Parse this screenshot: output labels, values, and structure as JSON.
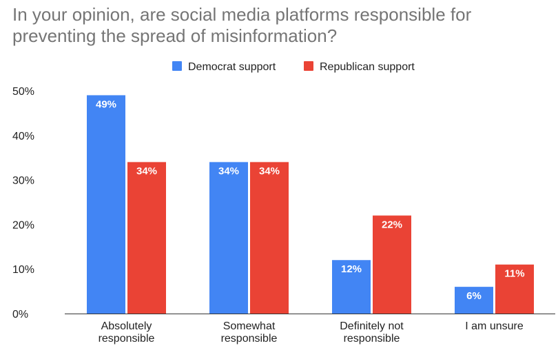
{
  "chart_data": {
    "type": "bar",
    "title_lines": [
      "In your opinion, are social media platforms responsible for",
      "preventing the spread of misinformation?"
    ],
    "categories": [
      [
        "Absolutely",
        "responsible"
      ],
      [
        "Somewhat",
        "responsible"
      ],
      [
        "Definitely not",
        "responsible"
      ],
      [
        "I am unsure"
      ]
    ],
    "series": [
      {
        "name": "Democrat support",
        "color": "#4285F4",
        "values": [
          49,
          34,
          12,
          6
        ],
        "labels": [
          "49%",
          "34%",
          "12%",
          "6%"
        ]
      },
      {
        "name": "Republican support",
        "color": "#EA4335",
        "values": [
          34,
          34,
          22,
          11
        ],
        "labels": [
          "34%",
          "34%",
          "22%",
          "11%"
        ]
      }
    ],
    "ylim": [
      0,
      50
    ],
    "yticks": [
      0,
      10,
      20,
      30,
      40,
      50
    ],
    "ytick_labels": [
      "0%",
      "10%",
      "20%",
      "30%",
      "40%",
      "50%"
    ],
    "legend_position": "top-center",
    "grid": false
  }
}
